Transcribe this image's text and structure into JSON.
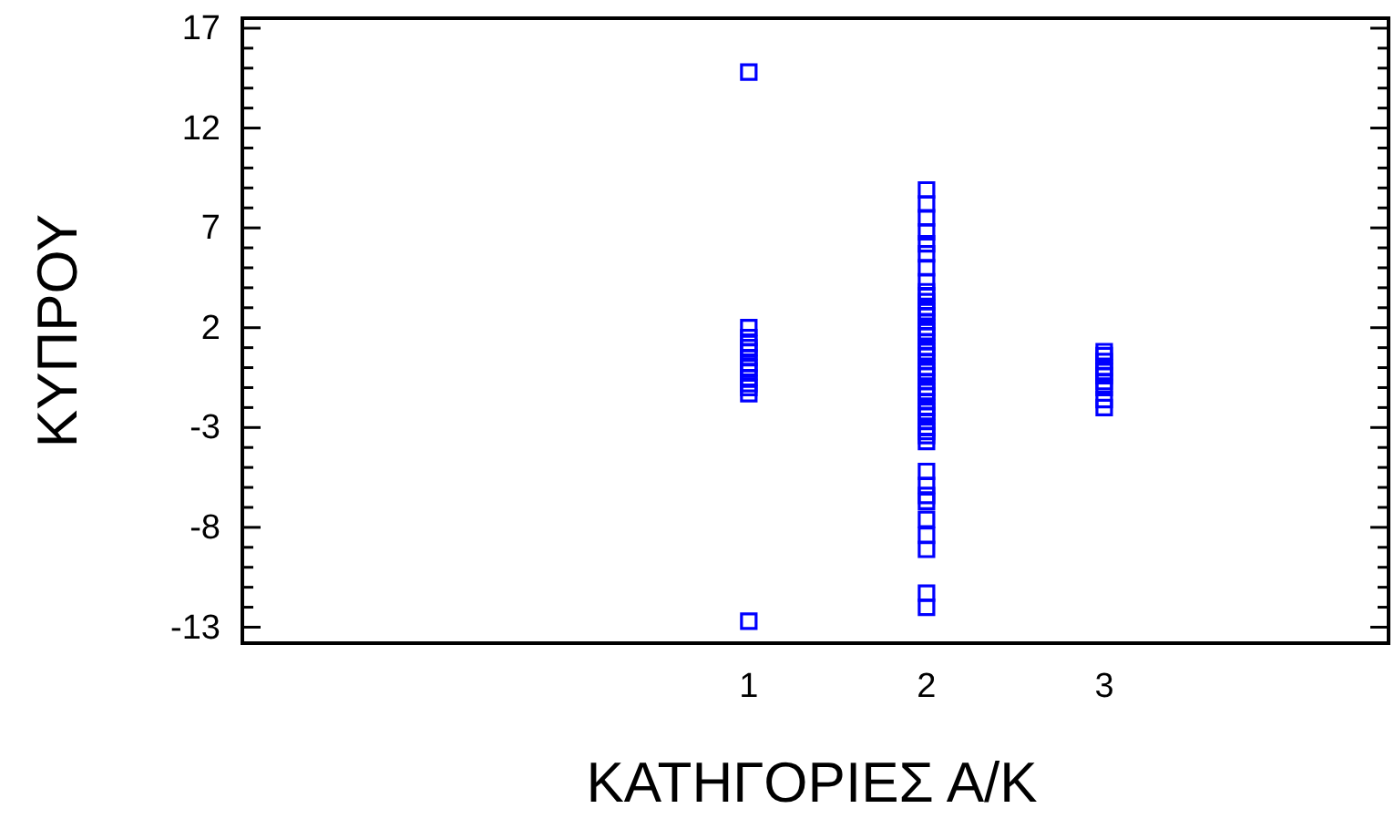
{
  "chart_data": {
    "type": "scatter",
    "xlabel": "ΚΑΤΗΓΟΡΙΕΣ Α/Κ",
    "ylabel": "ΚΥΠΡΟΥ",
    "xlim": [
      -1.85,
      4.6
    ],
    "xticks": [
      1,
      2,
      3
    ],
    "ylim": [
      -13.8,
      17.5
    ],
    "yticks": [
      17,
      {
        "value": 16,
        "label": null
      },
      {
        "value": 15,
        "label": null
      },
      {
        "value": 14,
        "label": null
      },
      {
        "value": 13,
        "label": null
      },
      12,
      {
        "value": 11,
        "label": null
      },
      {
        "value": 10,
        "label": null
      },
      {
        "value": 9,
        "label": null
      },
      {
        "value": 8,
        "label": null
      },
      7,
      {
        "value": 6,
        "label": null
      },
      {
        "value": 5,
        "label": null
      },
      {
        "value": 4,
        "label": null
      },
      {
        "value": 3,
        "label": null
      },
      2,
      {
        "value": 1,
        "label": null
      },
      {
        "value": 0,
        "label": null
      },
      {
        "value": -1,
        "label": null
      },
      {
        "value": -2,
        "label": null
      },
      -3,
      {
        "value": -4,
        "label": null
      },
      {
        "value": -5,
        "label": null
      },
      {
        "value": -6,
        "label": null
      },
      {
        "value": -7,
        "label": null
      },
      -8,
      {
        "value": -9,
        "label": null
      },
      {
        "value": -10,
        "label": null
      },
      {
        "value": -11,
        "label": null
      },
      {
        "value": -12,
        "label": null
      },
      -13
    ],
    "marker": "square",
    "grid": false,
    "series": [
      {
        "color": "#0000ff",
        "x": [
          1,
          1,
          1,
          1,
          1,
          1,
          1,
          1,
          1,
          1,
          1,
          1,
          1,
          1,
          1,
          2,
          2,
          2,
          2,
          2,
          2,
          2,
          2,
          2,
          2,
          2,
          2,
          2,
          2,
          2,
          2,
          2,
          2,
          2,
          2,
          2,
          2,
          2,
          2,
          2,
          2,
          2,
          2,
          2,
          2,
          2,
          2,
          2,
          2,
          2,
          2,
          2,
          2,
          2,
          2,
          2,
          2,
          2,
          2,
          2,
          2,
          2,
          2,
          3,
          3,
          3,
          3,
          3,
          3,
          3,
          3,
          3,
          3
        ],
        "values": [
          14.8,
          2.0,
          1.5,
          1.2,
          1.0,
          0.8,
          0.5,
          0.2,
          0,
          -0.2,
          -0.5,
          -0.8,
          -1.0,
          -1.3,
          -12.7,
          8.9,
          8.2,
          7.5,
          6.8,
          6.2,
          5.7,
          5.0,
          4.3,
          3.8,
          3.6,
          3.3,
          3.0,
          2.8,
          2.6,
          2.3,
          2.0,
          1.8,
          1.6,
          1.3,
          1.0,
          0.8,
          0.6,
          0.3,
          0.0,
          -0.2,
          -0.4,
          -0.7,
          -1.0,
          -1.2,
          -1.4,
          -1.7,
          -2.0,
          -2.2,
          -2.4,
          -2.7,
          -3.0,
          -3.2,
          -3.4,
          -3.7,
          -5.2,
          -5.9,
          -6.4,
          -6.7,
          -7.6,
          -8.4,
          -9.1,
          -11.3,
          -12.0,
          0.8,
          0.6,
          0.3,
          0.0,
          -0.2,
          -0.4,
          -0.7,
          -1.0,
          -1.6,
          -2.0
        ]
      }
    ]
  }
}
